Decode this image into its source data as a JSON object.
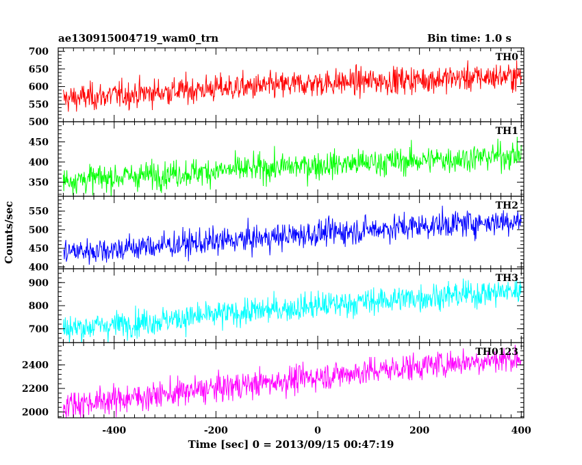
{
  "chart_data": {
    "type": "line",
    "title": "ae130915004719_wam0_trn",
    "subtitle": "Bin time: 1.0 s",
    "xlabel": "Time [sec] 0 = 2013/09/15 00:47:19",
    "ylabel": "Counts/sec",
    "xlim": [
      -510,
      405
    ],
    "x_ticks": [
      -400,
      -200,
      0,
      200,
      400
    ],
    "x_sample": [
      -500,
      -400,
      -300,
      -200,
      -100,
      0,
      100,
      200,
      300,
      400
    ],
    "panels": [
      {
        "name": "TH0",
        "color": "#ff0000",
        "ylim": [
          500,
          710
        ],
        "y_ticks": [
          500,
          550,
          600,
          650,
          700
        ],
        "trend": [
          565,
          575,
          585,
          595,
          600,
          610,
          615,
          620,
          625,
          630
        ]
      },
      {
        "name": "TH1",
        "color": "#00ff00",
        "ylim": [
          315,
          500
        ],
        "y_ticks": [
          350,
          400,
          450
        ],
        "trend": [
          355,
          362,
          370,
          378,
          385,
          392,
          398,
          404,
          410,
          418
        ]
      },
      {
        "name": "TH2",
        "color": "#0000ff",
        "ylim": [
          395,
          590
        ],
        "y_ticks": [
          400,
          450,
          500,
          550
        ],
        "trend": [
          440,
          448,
          458,
          468,
          478,
          490,
          500,
          510,
          518,
          525
        ]
      },
      {
        "name": "TH3",
        "color": "#00ffff",
        "ylim": [
          640,
          960
        ],
        "y_ticks": [
          700,
          800,
          900
        ],
        "trend": [
          700,
          718,
          738,
          760,
          780,
          800,
          818,
          835,
          850,
          865
        ]
      },
      {
        "name": "TH0123",
        "color": "#ff00ff",
        "ylim": [
          1950,
          2590
        ],
        "y_ticks": [
          2000,
          2200,
          2400
        ],
        "trend": [
          2060,
          2105,
          2150,
          2200,
          2250,
          2300,
          2345,
          2390,
          2430,
          2460
        ]
      }
    ]
  }
}
